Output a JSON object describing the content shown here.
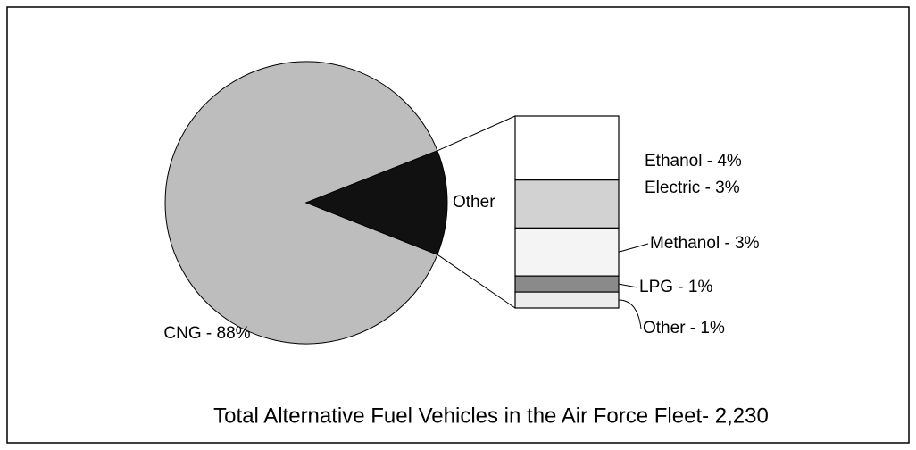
{
  "chart_data": {
    "type": "pie",
    "title": "Total Alternative Fuel Vehicles in the Air Force Fleet- 2,230",
    "values": [
      88
    ],
    "value_labels": [
      "CNG - 88%"
    ],
    "colors": [
      "#bdbdbd",
      "#111111"
    ],
    "other_label": "Other",
    "breakdown": {
      "values": [
        4,
        3,
        3,
        1,
        1
      ],
      "value_labels": [
        "Ethanol - 4%",
        "Electric - 3%",
        "Methanol - 3%",
        "LPG - 1%",
        "Other - 1%"
      ],
      "colors": [
        "#ffffff",
        "#d2d2d2",
        "#f4f4f4",
        "#8a8a8a",
        "#ececec"
      ]
    }
  }
}
